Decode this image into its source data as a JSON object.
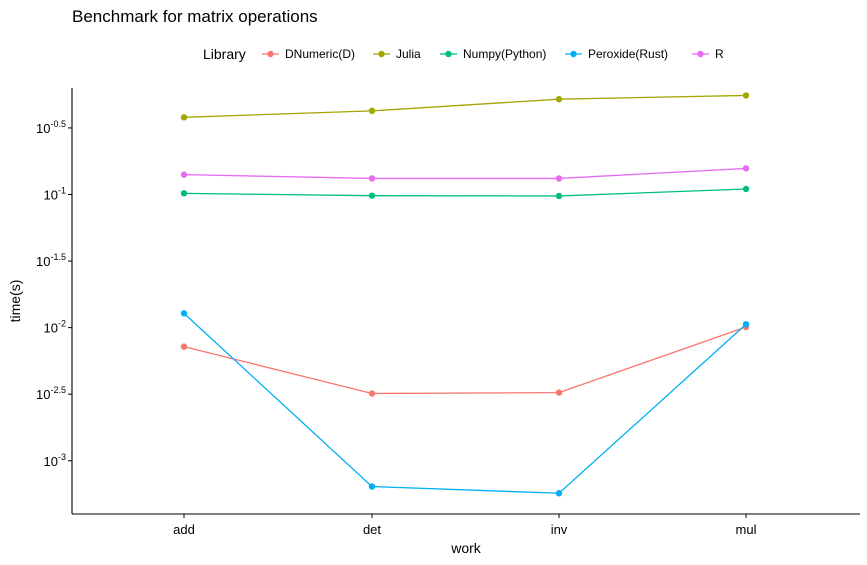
{
  "chart_data": {
    "type": "line",
    "title": "Benchmark for matrix operations",
    "xlabel": "work",
    "ylabel": "time(s)",
    "yscale": "log10",
    "ylim_log10": [
      -3.4,
      -0.2
    ],
    "categories": [
      "add",
      "det",
      "inv",
      "mul"
    ],
    "y_ticks": [
      {
        "log": -0.5,
        "base": "10",
        "exp": "-0.5"
      },
      {
        "log": -1.0,
        "base": "10",
        "exp": "-1"
      },
      {
        "log": -1.5,
        "base": "10",
        "exp": "-1.5"
      },
      {
        "log": -2.0,
        "base": "10",
        "exp": "-2"
      },
      {
        "log": -2.5,
        "base": "10",
        "exp": "-2.5"
      },
      {
        "log": -3.0,
        "base": "10",
        "exp": "-3"
      }
    ],
    "legend": {
      "title": "Library",
      "position": "top"
    },
    "grid": false,
    "series": [
      {
        "name": "DNumeric(D)",
        "color": "#F8766D",
        "values": [
          0.0072,
          0.0032,
          0.00325,
          0.0101
        ]
      },
      {
        "name": "Julia",
        "color": "#A3A500",
        "values": [
          0.38,
          0.425,
          0.52,
          0.555
        ]
      },
      {
        "name": "Numpy(Python)",
        "color": "#00BF7D",
        "values": [
          0.102,
          0.098,
          0.0975,
          0.11
        ]
      },
      {
        "name": "Peroxide(Rust)",
        "color": "#00B0F6",
        "values": [
          0.0128,
          0.00064,
          0.00057,
          0.0106
        ]
      },
      {
        "name": "R",
        "color": "#E76BF3",
        "values": [
          0.141,
          0.132,
          0.132,
          0.157
        ]
      }
    ]
  }
}
